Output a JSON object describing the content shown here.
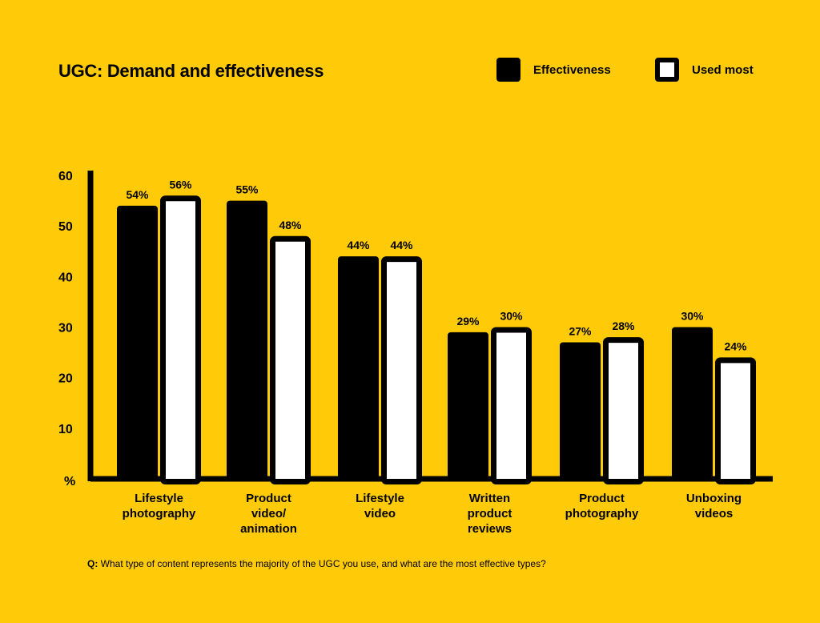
{
  "title": "UGC: Demand and effectiveness",
  "legend": [
    {
      "label": "Effectiveness",
      "style": "filled"
    },
    {
      "label": "Used most",
      "style": "outlined"
    }
  ],
  "colors": {
    "background": "#FFCB08",
    "dark": "#000000",
    "light": "#FFFFFF"
  },
  "chart_data": {
    "type": "bar",
    "title": "UGC: Demand and effectiveness",
    "ylabel": "%",
    "ylim": [
      0,
      60
    ],
    "yticks": [
      60,
      50,
      40,
      30,
      20,
      10
    ],
    "y_unit_label": "%",
    "categories": [
      [
        "Lifestyle",
        "photography"
      ],
      [
        "Product",
        "video/",
        "animation"
      ],
      [
        "Lifestyle",
        "video"
      ],
      [
        "Written",
        "product",
        "reviews"
      ],
      [
        "Product",
        "photography"
      ],
      [
        "Unboxing",
        "videos"
      ]
    ],
    "series": [
      {
        "name": "Effectiveness",
        "values": [
          54,
          55,
          44,
          29,
          27,
          30
        ],
        "labels": [
          "54%",
          "55%",
          "44%",
          "29%",
          "27%",
          "30%"
        ]
      },
      {
        "name": "Used most",
        "values": [
          56,
          48,
          44,
          30,
          28,
          24
        ],
        "labels": [
          "56%",
          "48%",
          "44%",
          "30%",
          "28%",
          "24%"
        ]
      }
    ]
  },
  "footnote": {
    "prefix": "Q:",
    "text": " What type of content represents the majority of the UGC you use, and what are the most effective types?"
  }
}
